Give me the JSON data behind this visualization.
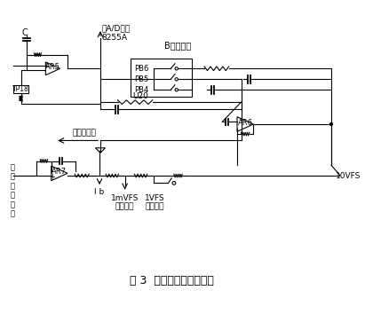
{
  "title": "图 3  信号输出电路接线图",
  "title_fontsize": 9,
  "bg_color": "#ffffff",
  "line_color": "#000000",
  "text_color": "#000000",
  "fig_width": 4.11,
  "fig_height": 3.63,
  "labels": {
    "C": "C",
    "AR5": "AR5",
    "TP18": "TP18",
    "AD": "去A/D转换\n8255A",
    "B_port": "B端口信号",
    "PB6": "PB6",
    "PB5": "PB5",
    "PB4": "PB4",
    "U20": "U20",
    "AR6": "AR6",
    "AR7": "AR7",
    "go_atten": "去衰减电路",
    "atten_signal": "衰\n减\n后\n的\n信\n号",
    "Ib": "I b",
    "1mVFS": "1mVFS",
    "1VFS": "1VFS",
    "10VFS": "10VFS",
    "recorder": "接记录仪",
    "integrator": "接积分仪"
  }
}
